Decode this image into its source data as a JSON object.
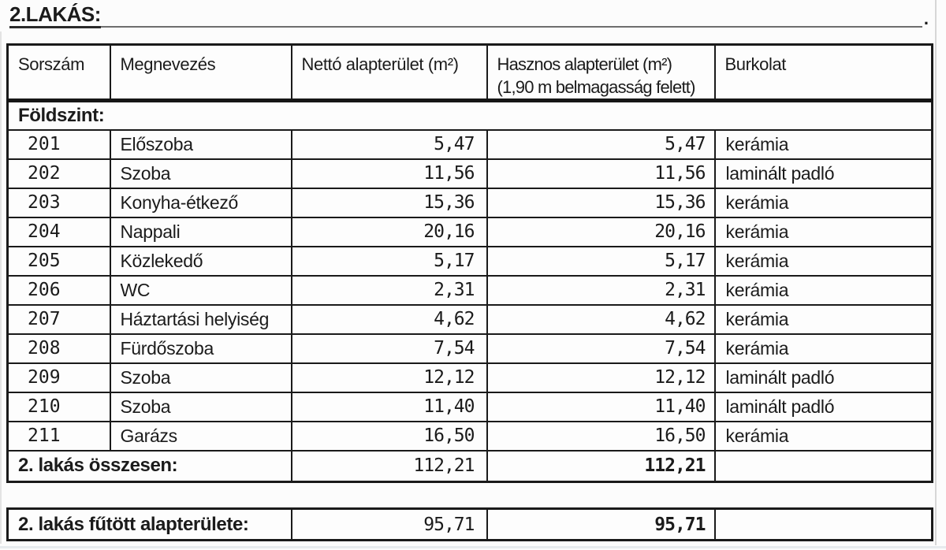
{
  "document": {
    "title": "2.LAKÁS:",
    "title_end_mark": "."
  },
  "table": {
    "columns": {
      "sorszam": "Sorszám",
      "megnevezes": "Megnevezés",
      "netto": "Nettó alapterület (m²)",
      "hasznos_line1": "Hasznos alapterület (m²)",
      "hasznos_line2": "(1,90 m belmagasság felett)",
      "burkolat": "Burkolat"
    },
    "section_label": "Földszint:",
    "rows": [
      {
        "no": "201",
        "name": "Előszoba",
        "netto": "5,47",
        "hasznos": "5,47",
        "burkolat": "kerámia"
      },
      {
        "no": "202",
        "name": "Szoba",
        "netto": "11,56",
        "hasznos": "11,56",
        "burkolat": "laminált padló"
      },
      {
        "no": "203",
        "name": "Konyha-étkező",
        "netto": "15,36",
        "hasznos": "15,36",
        "burkolat": "kerámia"
      },
      {
        "no": "204",
        "name": "Nappali",
        "netto": "20,16",
        "hasznos": "20,16",
        "burkolat": "kerámia"
      },
      {
        "no": "205",
        "name": "Közlekedő",
        "netto": "5,17",
        "hasznos": "5,17",
        "burkolat": "kerámia"
      },
      {
        "no": "206",
        "name": "WC",
        "netto": "2,31",
        "hasznos": "2,31",
        "burkolat": "kerámia"
      },
      {
        "no": "207",
        "name": "Háztartási helyiség",
        "netto": "4,62",
        "hasznos": "4,62",
        "burkolat": "kerámia"
      },
      {
        "no": "208",
        "name": "Fürdőszoba",
        "netto": "7,54",
        "hasznos": "7,54",
        "burkolat": "kerámia"
      },
      {
        "no": "209",
        "name": "Szoba",
        "netto": "12,12",
        "hasznos": "12,12",
        "burkolat": "laminált padló"
      },
      {
        "no": "210",
        "name": "Szoba",
        "netto": "11,40",
        "hasznos": "11,40",
        "burkolat": "laminált padló"
      },
      {
        "no": "211",
        "name": "Garázs",
        "netto": "16,50",
        "hasznos": "16,50",
        "burkolat": "kerámia"
      }
    ],
    "total": {
      "label": "2. lakás összesen:",
      "netto": "112,21",
      "hasznos": "112,21",
      "burkolat": ""
    },
    "heated": {
      "label": "2. lakás fűtött alapterülete:",
      "netto": "95,71",
      "hasznos": "95,71",
      "burkolat": ""
    }
  }
}
